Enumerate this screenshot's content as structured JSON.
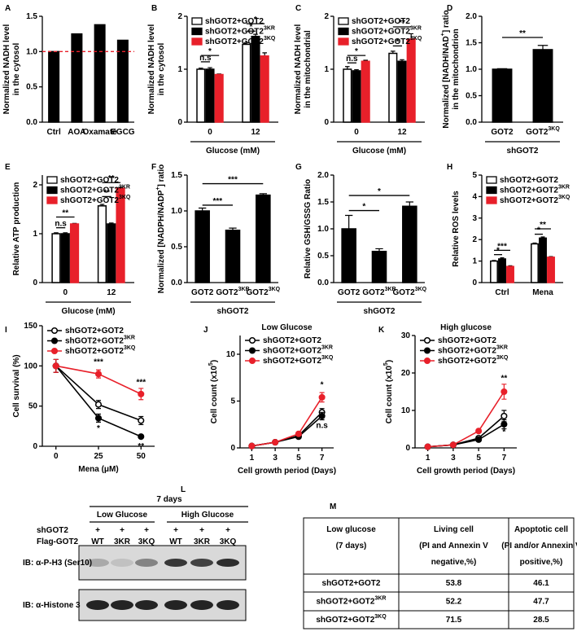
{
  "chart_data": [
    {
      "type": "bar",
      "panel_label": "A",
      "ylabel": [
        "Normalized NADH level",
        "in the cytosol"
      ],
      "categories": [
        "Ctrl",
        "AOA",
        "Oxamate",
        "EGCG"
      ],
      "values": [
        1.0,
        1.25,
        1.38,
        1.16
      ],
      "color": "#000000",
      "hline": 1.0,
      "hline_color": "#e8202a",
      "ylim": [
        0,
        1.5
      ],
      "yticks": [
        {
          "value": 0,
          "label": "0.0"
        },
        0.5,
        {
          "value": 1,
          "label": "1.0"
        },
        1.5
      ],
      "annotations": []
    },
    {
      "type": "bar",
      "panel_label": "B",
      "ylabel": [
        "Normalized NADH level",
        "in the cytosol"
      ],
      "xlabel": "Glucose (mM)",
      "categories": [
        "0",
        "12"
      ],
      "legend": "upper left",
      "series": [
        {
          "name": [
            "shGOT2+GOT2"
          ],
          "color": "#ffffff",
          "edgecolor": "#000000",
          "values": [
            1.0,
            1.47
          ],
          "errors": [
            0.02,
            0.03
          ]
        },
        {
          "name": [
            "shGOT2+GOT2",
            {
              "sup": "3KR"
            }
          ],
          "color": "#000000",
          "values": [
            1.0,
            1.62
          ],
          "errors": [
            0.03,
            0.04
          ]
        },
        {
          "name": [
            "shGOT2+GOT2",
            {
              "sup": "3KQ"
            }
          ],
          "color": "#e8202a",
          "values": [
            0.9,
            1.25
          ],
          "errors": [
            0.01,
            0.06
          ]
        }
      ],
      "ylim": [
        0,
        2
      ],
      "yticks": [
        0,
        1,
        2
      ],
      "annotations": [
        "n.s",
        "*",
        "*",
        "*"
      ]
    },
    {
      "type": "bar",
      "panel_label": "C",
      "ylabel": [
        "Normalized NADH level",
        "in the mitochondrial"
      ],
      "xlabel": "Glucose (mM)",
      "categories": [
        "0",
        "12"
      ],
      "legend": "upper left",
      "series": [
        {
          "name": [
            "shGOT2+GOT2"
          ],
          "color": "#ffffff",
          "edgecolor": "#000000",
          "values": [
            1.0,
            1.3
          ],
          "errors": [
            0.05,
            0.04
          ]
        },
        {
          "name": [
            "shGOT2+GOT2",
            {
              "sup": "3KR"
            }
          ],
          "color": "#000000",
          "values": [
            0.97,
            1.15
          ],
          "errors": [
            0.02,
            0.03
          ]
        },
        {
          "name": [
            "shGOT2+GOT2",
            {
              "sup": "3KQ"
            }
          ],
          "color": "#e8202a",
          "values": [
            1.15,
            1.57
          ],
          "errors": [
            0.02,
            0.1
          ]
        }
      ],
      "ylim": [
        0,
        2
      ],
      "yticks": [
        0,
        1,
        2
      ],
      "annotations": [
        "n.s",
        "*",
        "*",
        "**"
      ]
    },
    {
      "type": "bar",
      "panel_label": "D",
      "ylabel": [
        [
          "Normalized [NADH/NAD",
          {
            "sup": "+"
          },
          "] ratio"
        ],
        "in the mitochondrion"
      ],
      "xlabel": "shGOT2",
      "categories": [
        "GOT2",
        [
          "GOT2",
          {
            "sup": "3KQ"
          }
        ]
      ],
      "values": [
        1.0,
        1.37
      ],
      "errors": [
        0.01,
        0.08
      ],
      "color": "#000000",
      "ylim": [
        0,
        2
      ],
      "yticks": [
        {
          "value": 0,
          "label": "0.0"
        },
        0.5,
        {
          "value": 1,
          "label": "1.0"
        },
        1.5,
        {
          "value": 2,
          "label": "2.0"
        }
      ],
      "annotations": [
        "**"
      ]
    },
    {
      "type": "bar",
      "panel_label": "E",
      "ylabel": [
        "Relative ATP production"
      ],
      "xlabel": "Glucose (mM)",
      "categories": [
        "0",
        "12"
      ],
      "legend": "upper left",
      "series": [
        {
          "name": [
            "shGOT2+GOT2"
          ],
          "color": "#ffffff",
          "edgecolor": "#000000",
          "values": [
            1.0,
            1.57
          ],
          "errors": [
            0.02,
            0.03
          ]
        },
        {
          "name": [
            "shGOT2+GOT2",
            {
              "sup": "3KR"
            }
          ],
          "color": "#000000",
          "values": [
            1.0,
            1.2
          ],
          "errors": [
            0.02,
            0.02
          ]
        },
        {
          "name": [
            "shGOT2+GOT2",
            {
              "sup": "3KQ"
            }
          ],
          "color": "#e8202a",
          "values": [
            1.2,
            1.93
          ],
          "errors": [
            0.01,
            0.02
          ]
        }
      ],
      "ylim": [
        0,
        2.2
      ],
      "yticks": [
        0,
        1,
        2
      ],
      "annotations": [
        "n.s",
        "**",
        "**",
        "**"
      ]
    },
    {
      "type": "bar",
      "panel_label": "F",
      "ylabel": [
        [
          "Normalized [NADPH/NADP",
          {
            "sup": "+"
          },
          "] ratio"
        ]
      ],
      "xlabel": "shGOT2",
      "categories": [
        "GOT2",
        [
          "GOT2",
          {
            "sup": "3KR"
          }
        ],
        [
          "GOT2",
          {
            "sup": "3KQ"
          }
        ]
      ],
      "values": [
        1.0,
        0.73,
        1.22
      ],
      "errors": [
        0.04,
        0.03,
        0.02
      ],
      "color": "#000000",
      "ylim": [
        0,
        1.5
      ],
      "yticks": [
        {
          "value": 0,
          "label": "0.0"
        },
        0.5,
        {
          "value": 1,
          "label": "1.0"
        },
        1.5
      ],
      "annotations": [
        "***",
        "***"
      ]
    },
    {
      "type": "bar",
      "panel_label": "G",
      "ylabel": [
        "Relative GSH/GSSG Ratio"
      ],
      "xlabel": "shGOT2",
      "categories": [
        "GOT2",
        [
          "GOT2",
          {
            "sup": "3KR"
          }
        ],
        [
          "GOT2",
          {
            "sup": "3KQ"
          }
        ]
      ],
      "values": [
        1.0,
        0.58,
        1.42
      ],
      "errors": [
        0.25,
        0.05,
        0.08
      ],
      "color": "#000000",
      "ylim": [
        0,
        2
      ],
      "yticks": [
        {
          "value": 0,
          "label": "0.0"
        },
        0.5,
        {
          "value": 1,
          "label": "1.0"
        },
        1.5,
        {
          "value": 2,
          "label": "2.0"
        }
      ],
      "annotations": [
        "*",
        "*"
      ]
    },
    {
      "type": "bar",
      "panel_label": "H",
      "ylabel": [
        "Relative ROS levels"
      ],
      "categories": [
        "Ctrl",
        "Mena"
      ],
      "legend": "upper left",
      "series": [
        {
          "name": [
            "shGOT2+GOT2"
          ],
          "color": "#ffffff",
          "edgecolor": "#000000",
          "values": [
            1.0,
            1.8
          ],
          "errors": [
            0.03,
            0.04
          ]
        },
        {
          "name": [
            "shGOT2+GOT2",
            {
              "sup": "3KR"
            }
          ],
          "color": "#000000",
          "values": [
            1.1,
            2.07
          ],
          "errors": [
            0.05,
            0.05
          ]
        },
        {
          "name": [
            "shGOT2+GOT2",
            {
              "sup": "3KQ"
            }
          ],
          "color": "#e8202a",
          "values": [
            0.75,
            1.18
          ],
          "errors": [
            0.03,
            0.03
          ]
        }
      ],
      "ylim": [
        0,
        5
      ],
      "yticks": [
        0,
        1,
        2,
        3,
        4,
        5
      ],
      "annotations": [
        "*",
        "***",
        "*",
        "**"
      ]
    },
    {
      "type": "line",
      "panel_label": "I",
      "ylabel": [
        "Cell survival (%)"
      ],
      "xlabel": "Mena (μM)",
      "legend": "upper left",
      "x": [
        0,
        25,
        50
      ],
      "xlim": [
        -8,
        58
      ],
      "xticks": [
        0,
        25,
        50
      ],
      "series": [
        {
          "name": [
            "shGOT2+GOT2"
          ],
          "color": "#000000",
          "marker": "open",
          "values": [
            100,
            52,
            32
          ],
          "errors": [
            8,
            5,
            5
          ]
        },
        {
          "name": [
            "shGOT2+GOT2",
            {
              "sup": "3KR"
            }
          ],
          "color": "#000000",
          "marker": "filled",
          "values": [
            100,
            35,
            12
          ],
          "errors": [
            8,
            5,
            2
          ]
        },
        {
          "name": [
            "shGOT2+GOT2",
            {
              "sup": "3KQ"
            }
          ],
          "color": "#e8202a",
          "marker": "filled",
          "values": [
            100,
            90,
            65
          ],
          "errors": [
            8,
            5,
            7
          ]
        }
      ],
      "ylim": [
        0,
        150
      ],
      "yticks": [
        0,
        50,
        100,
        150
      ],
      "annotations": [
        "***",
        "***",
        "*",
        "**"
      ]
    },
    {
      "type": "line",
      "panel_label": "J",
      "title": "Low Glucose",
      "ylabel": [
        [
          "Cell count (x10",
          {
            "sup": "5"
          },
          ")"
        ]
      ],
      "xlabel": "Cell growth period (Days)",
      "legend": "upper left",
      "x": [
        1,
        3,
        5,
        7
      ],
      "xlim": [
        0,
        8
      ],
      "xticks": [
        1,
        3,
        5,
        7
      ],
      "series": [
        {
          "name": [
            "shGOT2+GOT2"
          ],
          "color": "#000000",
          "marker": "open",
          "values": [
            0.2,
            0.6,
            1.3,
            3.8
          ],
          "errors": [
            0.05,
            0.05,
            0.1,
            0.4
          ]
        },
        {
          "name": [
            "shGOT2+GOT2",
            {
              "sup": "3KR"
            }
          ],
          "color": "#000000",
          "marker": "filled",
          "values": [
            0.2,
            0.6,
            1.2,
            3.4
          ],
          "errors": [
            0.05,
            0.05,
            0.1,
            0.4
          ]
        },
        {
          "name": [
            "shGOT2+GOT2",
            {
              "sup": "3KQ"
            }
          ],
          "color": "#e8202a",
          "marker": "filled",
          "values": [
            0.2,
            0.6,
            1.5,
            5.4
          ],
          "errors": [
            0.05,
            0.05,
            0.1,
            0.5
          ]
        }
      ],
      "ylim": [
        0,
        12
      ],
      "yticks": [
        0,
        5,
        10
      ],
      "annotations": [
        "*",
        "n.s"
      ]
    },
    {
      "type": "line",
      "panel_label": "K",
      "title": "High glucose",
      "ylabel": [
        [
          "Cell count (x10",
          {
            "sup": "5"
          },
          ")"
        ]
      ],
      "xlabel": "Cell growth period (Days)",
      "legend": "upper left",
      "x": [
        1,
        3,
        5,
        7
      ],
      "xlim": [
        0,
        8
      ],
      "xticks": [
        1,
        3,
        5,
        7
      ],
      "series": [
        {
          "name": [
            "shGOT2+GOT2"
          ],
          "color": "#000000",
          "marker": "open",
          "values": [
            0.3,
            0.8,
            2.6,
            8.5
          ],
          "errors": [
            0.1,
            0.1,
            0.3,
            1.5
          ]
        },
        {
          "name": [
            "shGOT2+GOT2",
            {
              "sup": "3KR"
            }
          ],
          "color": "#000000",
          "marker": "filled",
          "values": [
            0.3,
            0.8,
            2.2,
            6.3
          ],
          "errors": [
            0.1,
            0.1,
            0.3,
            1.2
          ]
        },
        {
          "name": [
            "shGOT2+GOT2",
            {
              "sup": "3KQ"
            }
          ],
          "color": "#e8202a",
          "marker": "filled",
          "values": [
            0.3,
            0.8,
            4.5,
            15
          ],
          "errors": [
            0.1,
            0.1,
            0.3,
            2
          ]
        }
      ],
      "ylim": [
        0,
        30
      ],
      "yticks": [
        0,
        10,
        20,
        30
      ],
      "annotations": [
        "**",
        "*"
      ]
    }
  ],
  "blot": {
    "panel_label": "L",
    "title": "7 days",
    "groups": [
      "Low Glucose",
      "High Glucose"
    ],
    "rows": [
      {
        "label": "shGOT2",
        "marks": [
          "+",
          "+",
          "+",
          "+",
          "+",
          "+"
        ]
      },
      {
        "label": "Flag-GOT2",
        "marks": [
          "WT",
          "3KR",
          "3KQ",
          "WT",
          "3KR",
          "3KQ"
        ]
      }
    ],
    "bands": [
      "IB: α-P-H3 (Ser10)",
      "IB: α-Histone 3"
    ]
  },
  "table": {
    "panel_label": "M",
    "header": [
      [
        "Low glucose",
        "(7 days)"
      ],
      [
        "Living cell",
        "(PI and Annexin V",
        "negative,%)"
      ],
      [
        "Apoptotic cell",
        "(PI and/or Annexin V",
        "positive,%)"
      ]
    ],
    "rows": [
      [
        [
          "shGOT2+GOT2"
        ],
        53.8,
        46.1
      ],
      [
        [
          "shGOT2+GOT2",
          {
            "sup": "3KR"
          }
        ],
        52.2,
        47.7
      ],
      [
        [
          "shGOT2+GOT2",
          {
            "sup": "3KQ"
          }
        ],
        71.5,
        28.5
      ]
    ]
  }
}
